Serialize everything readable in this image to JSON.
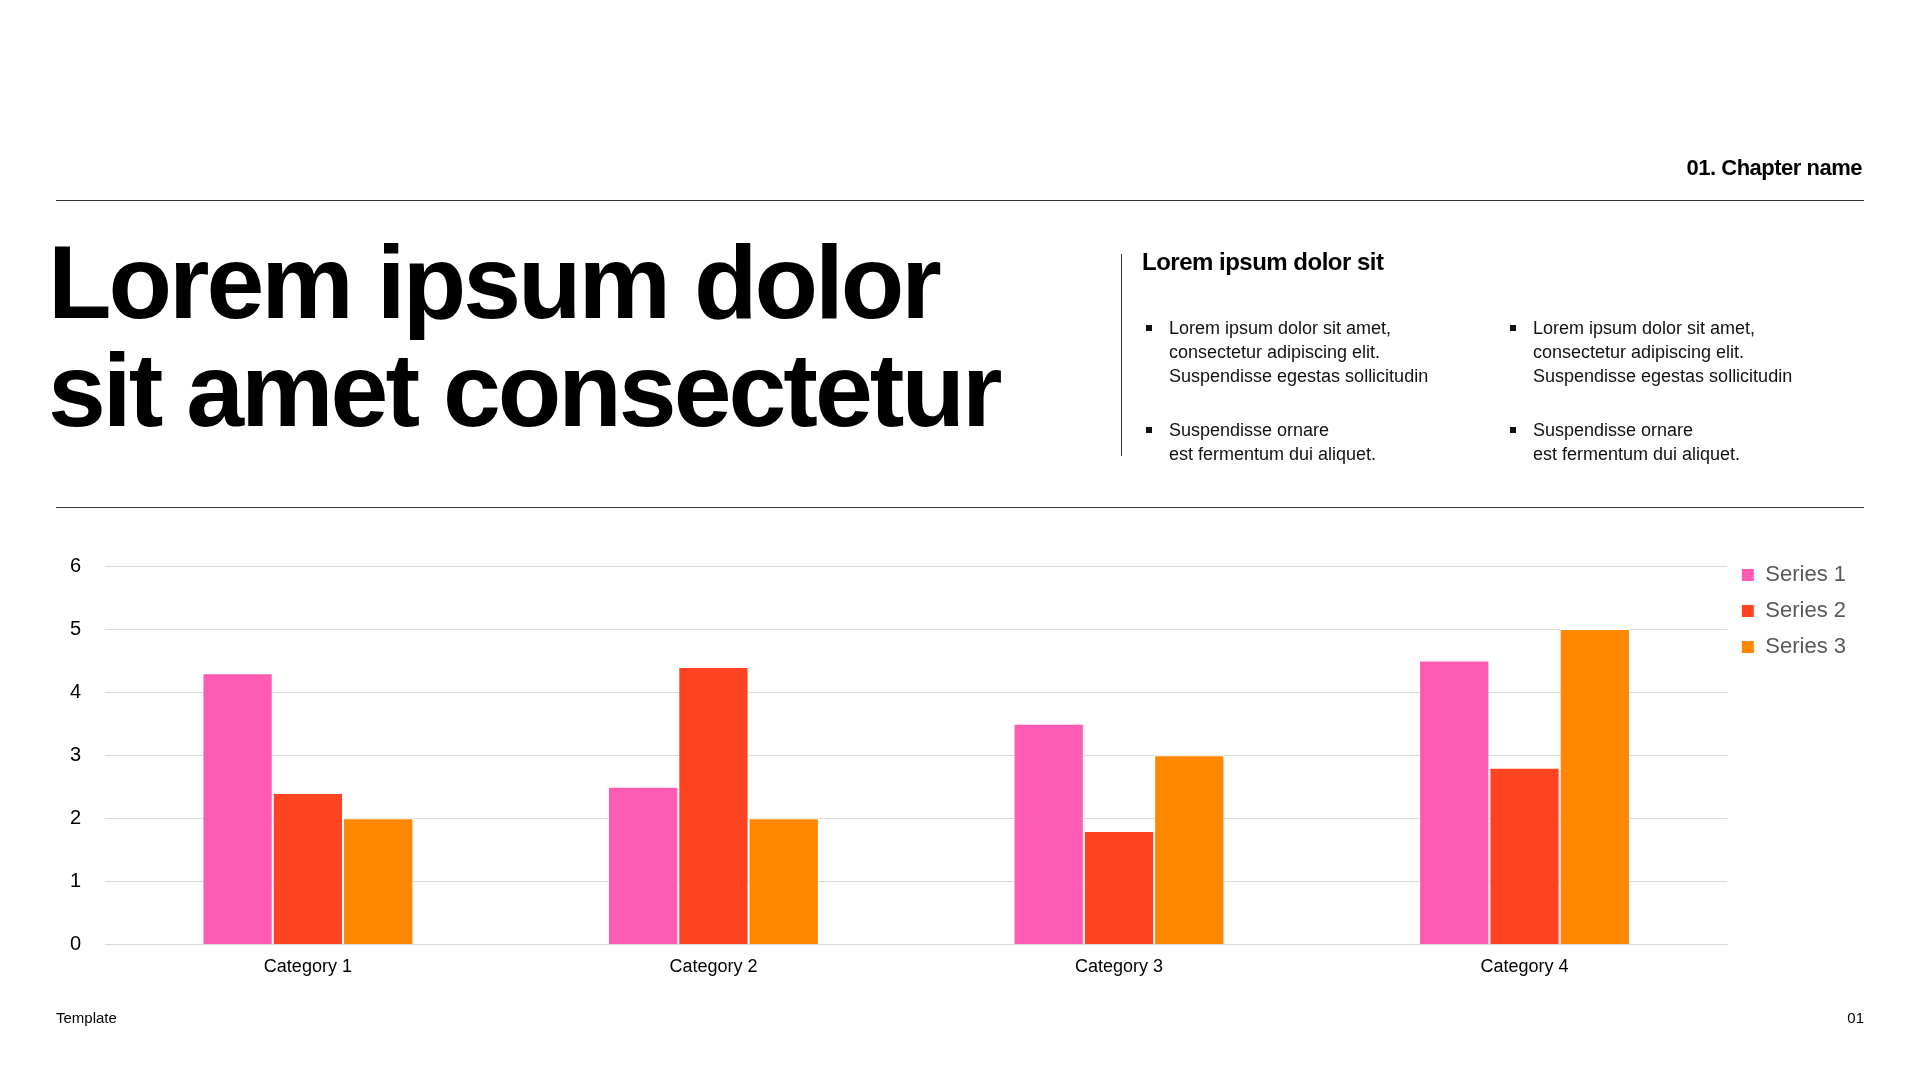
{
  "chart_data": {
    "type": "bar",
    "title": "Lorem ipsum dolor sit amet consectetur",
    "categories": [
      "Category 1",
      "Category 2",
      "Category 3",
      "Category 4"
    ],
    "series": [
      {
        "name": "Series 1",
        "color": "#ff5ab4",
        "values": [
          4.3,
          2.5,
          3.5,
          4.5
        ]
      },
      {
        "name": "Series 2",
        "color": "#ff4422",
        "values": [
          2.4,
          4.4,
          1.8,
          2.8
        ]
      },
      {
        "name": "Series 3",
        "color": "#ff8800",
        "values": [
          2,
          2,
          3,
          5
        ]
      }
    ],
    "ylim": [
      0,
      6
    ],
    "yticks": [
      0,
      1,
      2,
      3,
      4,
      5,
      6
    ],
    "grid": "y",
    "legend": "top right",
    "annotations": [
      "01. Chapter name",
      "Lorem ipsum dolor sit",
      "Lorem ipsum dolor sit amet,\nconsectetur adipiscing elit.\nSuspendisse egestas sollicitudin",
      "Lorem ipsum dolor sit amet,\nconsectetur adipiscing elit.\nSuspendisse egestas sollicitudin",
      "Suspendisse ornare\nest fermentum dui aliquet.",
      "Suspendisse ornare\nest fermentum dui aliquet.",
      "Template",
      "01"
    ]
  }
}
